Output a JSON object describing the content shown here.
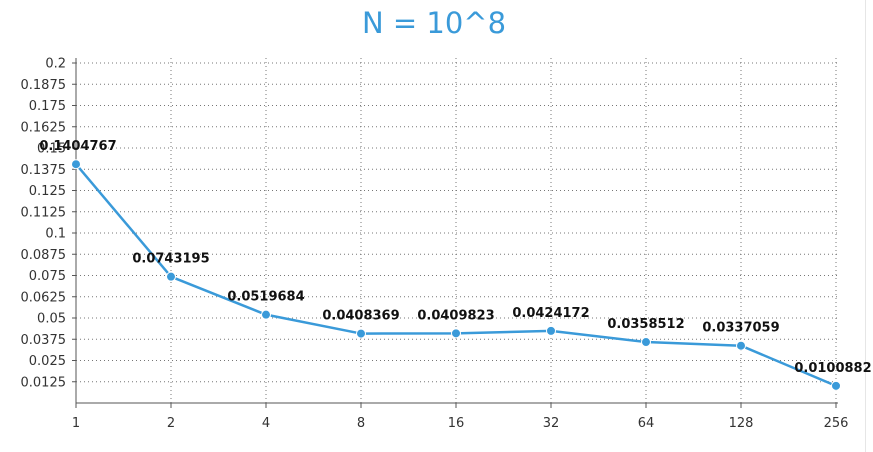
{
  "chart_data": {
    "type": "line",
    "title": "N = 10^8",
    "xlabel": "",
    "ylabel": "",
    "categories": [
      "1",
      "2",
      "4",
      "8",
      "16",
      "32",
      "64",
      "128",
      "256"
    ],
    "series": [
      {
        "values": [
          0.1404767,
          0.0743195,
          0.0519684,
          0.0408369,
          0.0409823,
          0.0424172,
          0.0358512,
          0.0337059,
          0.0100882
        ],
        "labels": [
          "0.1404767",
          "0.0743195",
          "0.0519684",
          "0.0408369",
          "0.0409823",
          "0.0424172",
          "0.0358512",
          "0.0337059",
          "0.0100882"
        ],
        "color": "#3a9ad9"
      }
    ],
    "ylim": [
      0,
      0.2
    ],
    "yticks": [
      "0.0125",
      "0.025",
      "0.0375",
      "0.05",
      "0.0625",
      "0.075",
      "0.0875",
      "0.1",
      "0.1125",
      "0.125",
      "0.1375",
      "0.15",
      "0.1625",
      "0.175",
      "0.1875",
      "0.2"
    ],
    "grid": true,
    "legend": "none"
  }
}
